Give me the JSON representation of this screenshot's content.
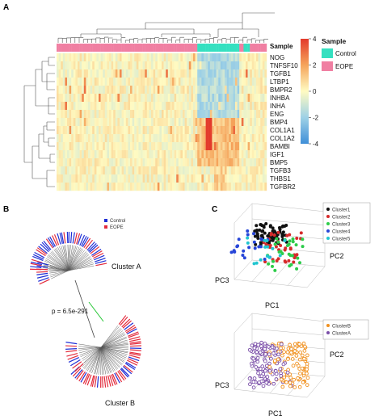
{
  "panels": {
    "a": "A",
    "b": "B",
    "c": "C"
  },
  "heatmap": {
    "sample_header": "Sample",
    "genes": [
      "NOG",
      "TNFSF10",
      "TGFB1",
      "LTBP1",
      "BMPR2",
      "INHBA",
      "INHA",
      "ENG",
      "BMP4",
      "COL1A1",
      "COL1A2",
      "BAMBI",
      "IGF1",
      "BMP5",
      "TGFB3",
      "THBS1",
      "TGFBR2"
    ],
    "scale_ticks": [
      "4",
      "2",
      "0",
      "-2",
      "-4"
    ],
    "scale_values": [
      4,
      2,
      0,
      -2,
      -4
    ],
    "legend_title": "Sample",
    "legend_items": [
      {
        "label": "Control",
        "color": "#35e0c0"
      },
      {
        "label": "EOPE",
        "color": "#f07fa2"
      }
    ],
    "colors": {
      "high": "#e33a2b",
      "mid": "#fffbc2",
      "low": "#3f8fd8",
      "control": "#35e0c0",
      "eope": "#f07fa2"
    }
  },
  "tree": {
    "legend": [
      {
        "label": "Control",
        "color": "#1f2fd6"
      },
      {
        "label": "EOPE",
        "color": "#e32b3d"
      }
    ],
    "cluster_a": "Cluster A",
    "cluster_b": "Cluster B",
    "pvalue": "p = 6.5e-291"
  },
  "pca_top": {
    "legend": [
      {
        "label": "Cluster1",
        "color": "#111111"
      },
      {
        "label": "Cluster2",
        "color": "#d62b2b"
      },
      {
        "label": "Cluster3",
        "color": "#2dcc4a"
      },
      {
        "label": "Cluster4",
        "color": "#2645d8"
      },
      {
        "label": "Cluster5",
        "color": "#22c6d0"
      }
    ],
    "axis_pc1": "PC1",
    "axis_pc2": "PC2",
    "axis_pc3": "PC3"
  },
  "pca_bottom": {
    "legend": [
      {
        "label": "ClusterB",
        "color": "#f0901e"
      },
      {
        "label": "ClusterA",
        "color": "#7a4ea8"
      }
    ],
    "axis_pc1": "PC1",
    "axis_pc2": "PC2",
    "axis_pc3": "PC3"
  }
}
